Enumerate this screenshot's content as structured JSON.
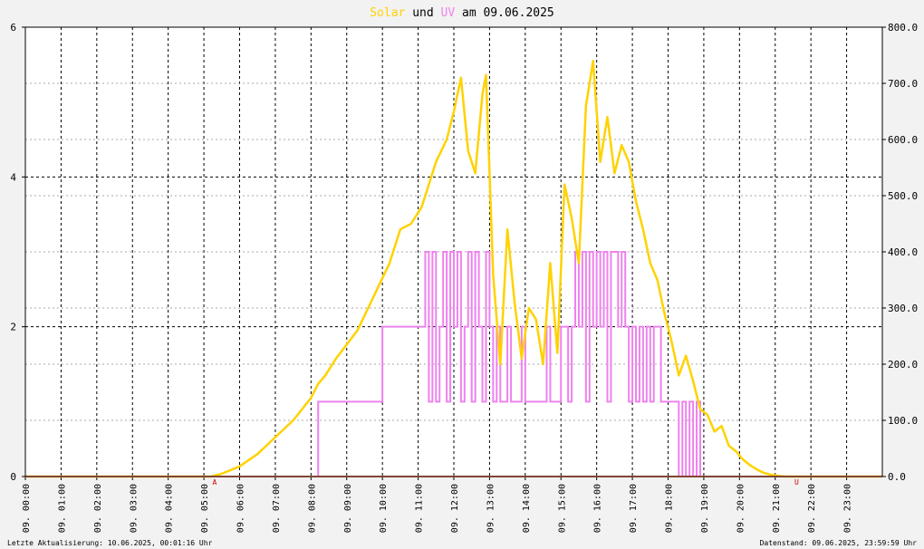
{
  "title": {
    "part1": "Solar",
    "part2": " und ",
    "part3": "UV",
    "part4": " am 09.06.2025",
    "color_solar": "#ffd200",
    "color_uv": "#ee82ee"
  },
  "footer": {
    "left": "Letzte Aktualisierung: 10.06.2025, 00:01:16 Uhr",
    "right": "Datenstand: 09.06.2025, 23:59:59 Uhr"
  },
  "markers": {
    "sunrise": {
      "label": "A",
      "hour": 5.3
    },
    "sunset": {
      "label": "U",
      "hour": 21.6
    }
  },
  "chart_data": {
    "type": "line",
    "x_ticks": [
      "09. 00:00",
      "09. 01:00",
      "09. 02:00",
      "09. 03:00",
      "09. 04:00",
      "09. 05:00",
      "09. 06:00",
      "09. 07:00",
      "09. 08:00",
      "09. 09:00",
      "09. 10:00",
      "09. 11:00",
      "09. 12:00",
      "09. 13:00",
      "09. 14:00",
      "09. 15:00",
      "09. 16:00",
      "09. 17:00",
      "09. 18:00",
      "09. 19:00",
      "09. 20:00",
      "09. 21:00",
      "09. 22:00",
      "09. 23:00"
    ],
    "xlim": [
      0,
      24
    ],
    "y_left": {
      "lim": [
        0,
        6
      ],
      "ticks": [
        "0",
        "2",
        "4",
        "6"
      ]
    },
    "y_right": {
      "lim": [
        0,
        800
      ],
      "ticks": [
        "0.0",
        "100.0",
        "200.0",
        "300.0",
        "400.0",
        "500.0",
        "600.0",
        "700.0",
        "800.0"
      ]
    },
    "grid": true,
    "series": [
      {
        "color": "#ffd200",
        "axis": "right",
        "x": [
          0,
          5.2,
          5.5,
          6,
          6.5,
          7,
          7.5,
          8,
          8.2,
          8.4,
          8.7,
          9,
          9.3,
          9.6,
          9.9,
          10.2,
          10.5,
          10.8,
          11.1,
          11.3,
          11.5,
          11.8,
          12,
          12.2,
          12.4,
          12.6,
          12.8,
          12.9,
          13,
          13.1,
          13.3,
          13.5,
          13.7,
          13.9,
          14.1,
          14.3,
          14.5,
          14.7,
          14.9,
          15.1,
          15.3,
          15.5,
          15.7,
          15.9,
          16.1,
          16.3,
          16.5,
          16.7,
          16.9,
          17.1,
          17.3,
          17.5,
          17.7,
          17.9,
          18.1,
          18.3,
          18.5,
          18.7,
          18.9,
          19.1,
          19.3,
          19.5,
          19.7,
          19.9,
          20.1,
          20.3,
          20.5,
          20.7,
          20.9,
          21.1,
          21.3,
          21.5,
          21.7,
          22,
          24
        ],
        "y": [
          0,
          0,
          5,
          18,
          40,
          70,
          100,
          140,
          165,
          180,
          210,
          235,
          260,
          300,
          340,
          380,
          440,
          450,
          480,
          520,
          560,
          600,
          650,
          710,
          580,
          540,
          680,
          715,
          540,
          360,
          200,
          440,
          310,
          210,
          300,
          280,
          200,
          380,
          220,
          520,
          460,
          380,
          660,
          740,
          560,
          640,
          540,
          590,
          560,
          490,
          440,
          380,
          350,
          290,
          240,
          180,
          215,
          170,
          120,
          110,
          80,
          90,
          55,
          45,
          30,
          20,
          12,
          6,
          3,
          1,
          0,
          0,
          0,
          0,
          0
        ]
      },
      {
        "color": "#ee82ee",
        "axis": "left",
        "x": [
          0,
          8.2,
          8.2,
          10,
          10,
          11.2,
          11.2,
          11.3,
          11.4,
          11.5,
          11.6,
          11.7,
          11.8,
          11.9,
          12,
          12.1,
          12.2,
          12.3,
          12.4,
          12.5,
          12.6,
          12.7,
          12.8,
          12.9,
          13,
          13.1,
          13.2,
          13.3,
          13.4,
          13.5,
          13.6,
          13.7,
          13.8,
          13.9,
          14,
          14.1,
          14.2,
          14.3,
          14.4,
          14.5,
          14.6,
          14.7,
          14.8,
          14.9,
          15,
          15.1,
          15.2,
          15.3,
          15.4,
          15.5,
          15.6,
          15.7,
          15.8,
          15.9,
          16,
          16.1,
          16.2,
          16.3,
          16.4,
          16.5,
          16.6,
          16.7,
          16.8,
          16.9,
          17,
          17.1,
          17.2,
          17.3,
          17.4,
          17.5,
          17.6,
          17.7,
          17.8,
          17.9,
          18,
          18.1,
          18.2,
          18.3,
          18.4,
          18.5,
          18.6,
          18.7,
          18.8,
          18.9,
          19,
          24
        ],
        "y": [
          0,
          0,
          1,
          1,
          2,
          2,
          3,
          1,
          3,
          1,
          2,
          3,
          1,
          3,
          2,
          3,
          1,
          2,
          3,
          1,
          3,
          2,
          1,
          3,
          2,
          1,
          2,
          1,
          1,
          2,
          1,
          1,
          1,
          2,
          1,
          1,
          1,
          1,
          1,
          1,
          2,
          1,
          1,
          1,
          2,
          2,
          1,
          2,
          3,
          2,
          3,
          1,
          3,
          2,
          3,
          2,
          3,
          1,
          3,
          3,
          2,
          3,
          2,
          1,
          2,
          1,
          2,
          1,
          2,
          1,
          2,
          2,
          1,
          1,
          1,
          1,
          1,
          0,
          1,
          0,
          1,
          0,
          1,
          0,
          0,
          0
        ]
      }
    ]
  }
}
